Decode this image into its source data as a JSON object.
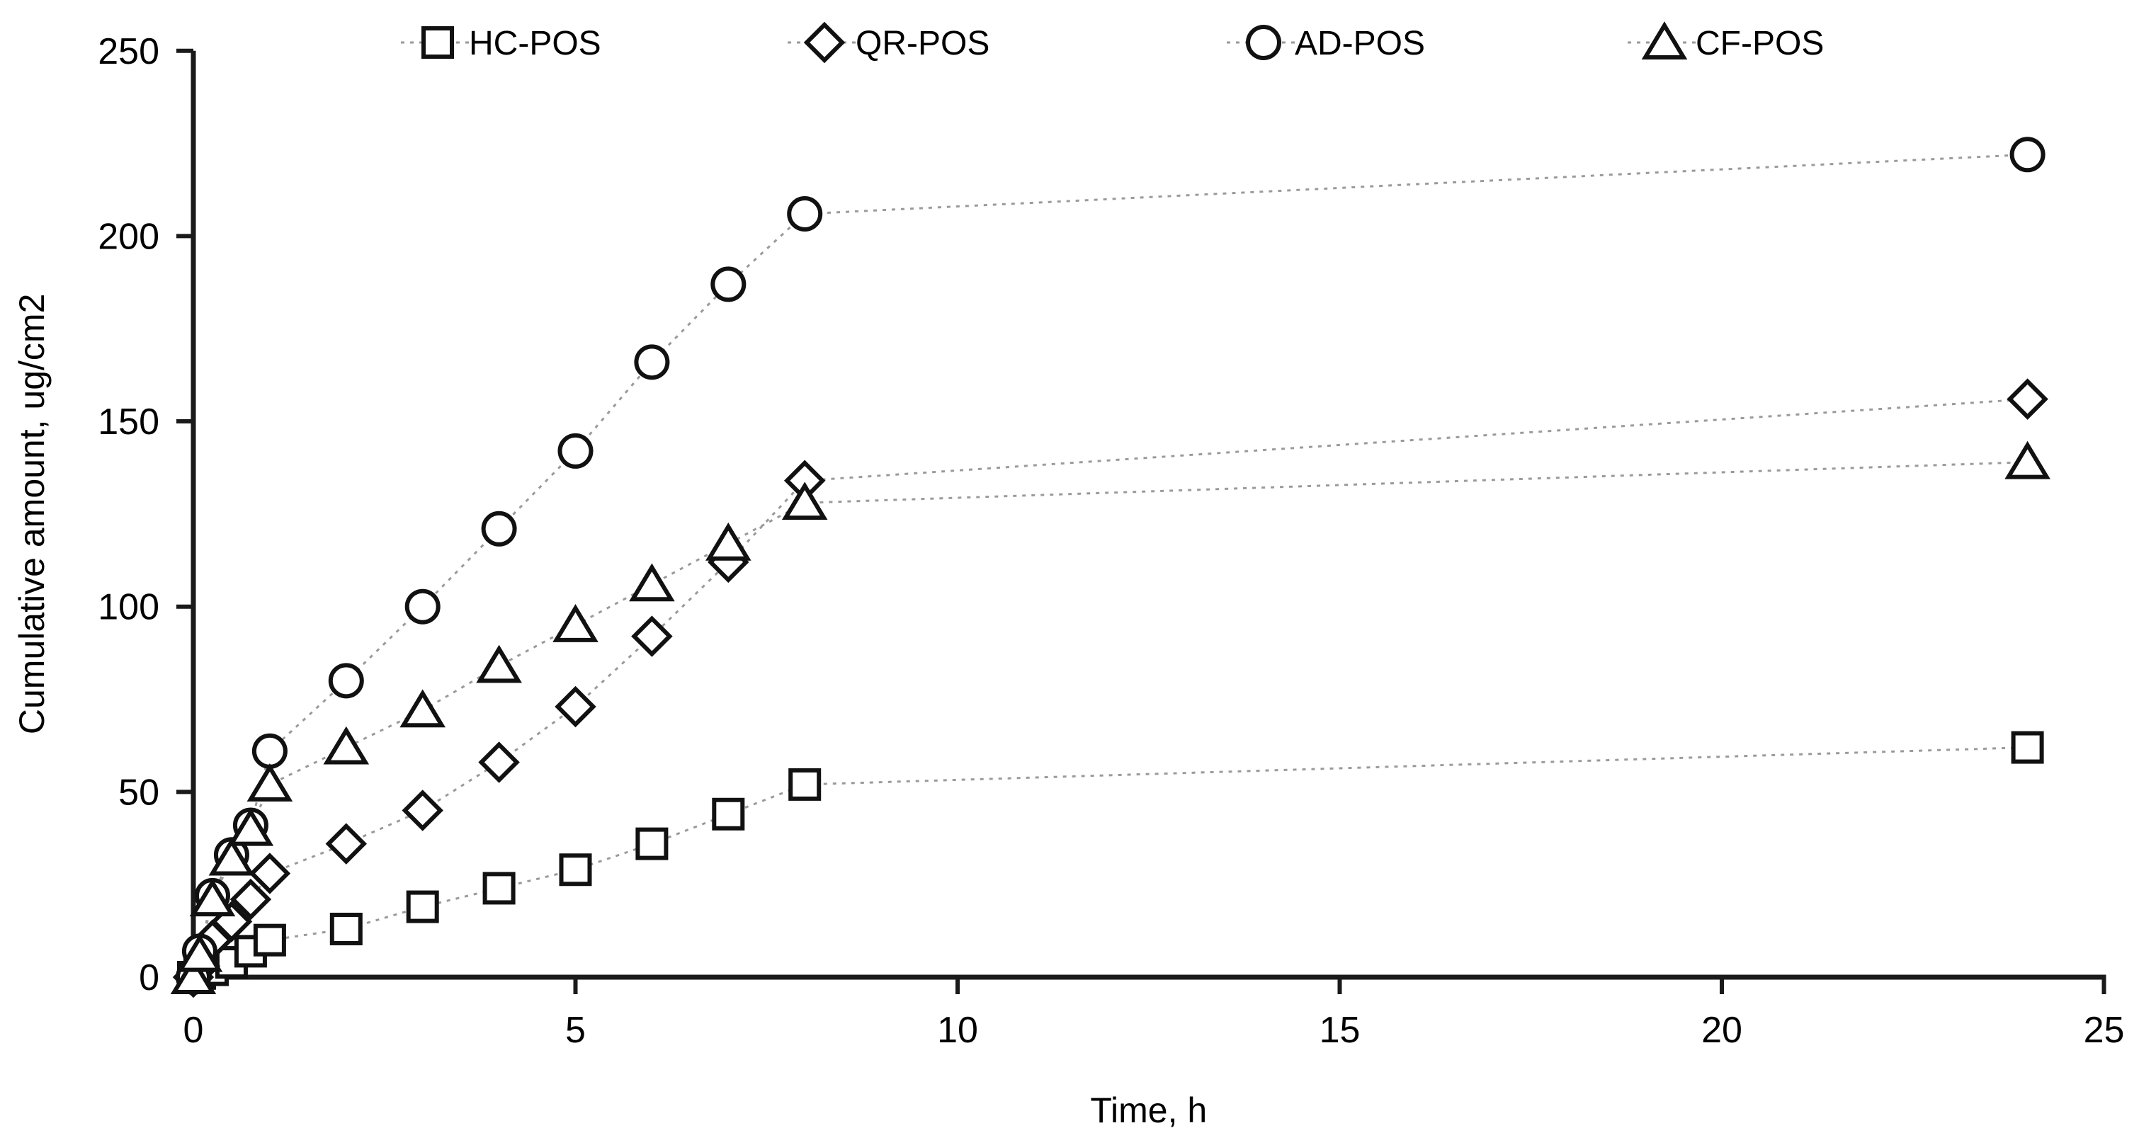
{
  "chart_data": {
    "type": "line",
    "title": "",
    "xlabel": "Time, h",
    "ylabel": "Cumulative amount, ug/cm2",
    "xlim": [
      0,
      25
    ],
    "ylim": [
      0,
      250
    ],
    "x_ticks": [
      0,
      5,
      10,
      15,
      20,
      25
    ],
    "y_ticks": [
      0,
      50,
      100,
      150,
      200,
      250
    ],
    "grid": false,
    "legend_position": "top",
    "x": [
      0,
      0.083,
      0.25,
      0.5,
      0.75,
      1,
      2,
      3,
      4,
      5,
      6,
      7,
      8,
      24
    ],
    "series": [
      {
        "name": "HC-POS",
        "marker": "square",
        "values": [
          0,
          1,
          2,
          4,
          7,
          10,
          13,
          19,
          24,
          29,
          36,
          44,
          52,
          62
        ]
      },
      {
        "name": "QR-POS",
        "marker": "diamond",
        "values": [
          0,
          3,
          10,
          15,
          21,
          28,
          36,
          45,
          58,
          73,
          92,
          112,
          134,
          156
        ]
      },
      {
        "name": "AD-POS",
        "marker": "circle",
        "values": [
          0,
          7,
          22,
          33,
          41,
          61,
          80,
          100,
          121,
          142,
          166,
          187,
          206,
          222
        ]
      },
      {
        "name": "CF-POS",
        "marker": "triangle",
        "values": [
          0,
          6,
          21,
          32,
          40,
          52,
          62,
          72,
          84,
          95,
          106,
          117,
          128,
          139
        ]
      }
    ],
    "colors": {
      "marker_stroke": "#111111",
      "marker_fill": "#ffffff",
      "line": "#9a9a9a",
      "axis": "#1a1a1a",
      "background": "#ffffff",
      "text": "#000000"
    }
  }
}
